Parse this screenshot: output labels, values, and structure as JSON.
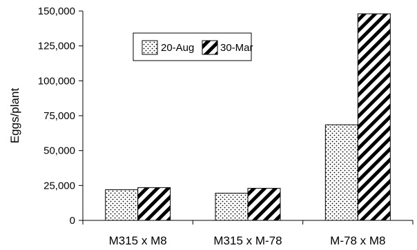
{
  "chart_data": {
    "type": "bar",
    "title": "",
    "xlabel": "",
    "ylabel": "Eggs/plant",
    "categories": [
      "M315 x M8",
      "M315 x M-78",
      "M-78 x M8"
    ],
    "series": [
      {
        "name": "20-Aug",
        "values": [
          22000,
          19500,
          68500
        ],
        "pattern": "dots"
      },
      {
        "name": "30-Mar",
        "values": [
          23500,
          23000,
          148000
        ],
        "pattern": "diagonal-stripes"
      }
    ],
    "ylim": [
      0,
      150000
    ],
    "yticks": [
      0,
      25000,
      50000,
      75000,
      100000,
      125000,
      150000
    ],
    "ytick_labels": [
      "0",
      "25,000",
      "50,000",
      "75,000",
      "100,000",
      "125,000",
      "150,000"
    ],
    "grid": false,
    "legend_position": "top-left-inside"
  },
  "colors": {
    "axis": "#000000",
    "bar_outline": "#000000",
    "pattern_fg": "#000000",
    "pattern_bg": "#ffffff"
  }
}
